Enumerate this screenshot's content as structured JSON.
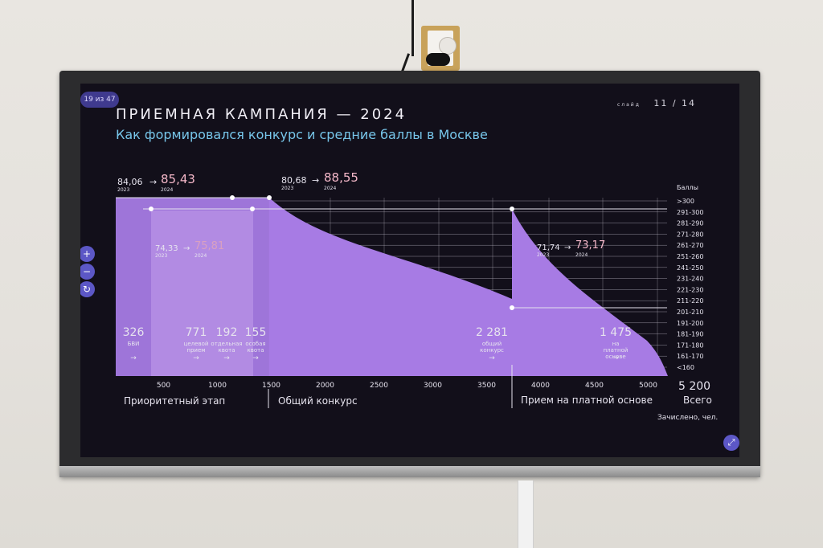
{
  "header": {
    "badge": "19 из 47",
    "title": "ПРИЕМНАЯ КАМПАНИЯ — 2024",
    "subtitle": "Как формировался конкурс и средние баллы в Москве",
    "slide_label": "слайд",
    "slide_number": "11 / 14"
  },
  "controls": {
    "zoom_in": "+",
    "zoom_out": "−",
    "reset": "↻",
    "expand": "⤢"
  },
  "chart_data": {
    "type": "area",
    "xlabel": "Зачислено, чел.",
    "ylabel": "Баллы",
    "x_ticks": [
      "500",
      "1000",
      "1500",
      "2000",
      "2500",
      "3000",
      "3500",
      "4000",
      "4500",
      "5000"
    ],
    "y_ticks": [
      ">300",
      "291-300",
      "281-290",
      "271-280",
      "261-270",
      "251-260",
      "241-250",
      "231-240",
      "221-230",
      "211-220",
      "201-210",
      "191-200",
      "181-190",
      "171-180",
      "161-170",
      "<160"
    ],
    "total": {
      "value": "5 200",
      "label": "Всего"
    },
    "segments": [
      {
        "name": "Приоритетный этап",
        "avg_2023": "84,06",
        "avg_2024": "85,43",
        "year_2023": "2023",
        "year_2024": "2024"
      },
      {
        "name": "Общий конкурс",
        "avg_2023": "80,68",
        "avg_2024": "88,55",
        "year_2023": "2023",
        "year_2024": "2024"
      },
      {
        "name": "Прием на платной основе",
        "avg_2023": "71,74",
        "avg_2024": "73,17",
        "year_2023": "2023",
        "year_2024": "2024"
      }
    ],
    "sub_segment": {
      "avg_2023": "74,33",
      "avg_2024": "75,81",
      "year_2023": "2023",
      "year_2024": "2024"
    },
    "groups": [
      {
        "value": "326",
        "label": "БВИ",
        "arrow": "→"
      },
      {
        "value": "771",
        "label": "целевой прием",
        "arrow": "→"
      },
      {
        "value": "192",
        "label": "отдельная квота",
        "arrow": "→"
      },
      {
        "value": "155",
        "label": "особая квота",
        "arrow": "→"
      },
      {
        "value": "2 281",
        "label": "общий конкурс",
        "arrow": "→"
      },
      {
        "value": "1 475",
        "label": "на платной основе",
        "arrow": "→"
      }
    ],
    "colors": {
      "area": "#a77be4",
      "area_light": "#c9a6f0",
      "background": "#120f1a",
      "grid": "#c7c3d0"
    }
  }
}
